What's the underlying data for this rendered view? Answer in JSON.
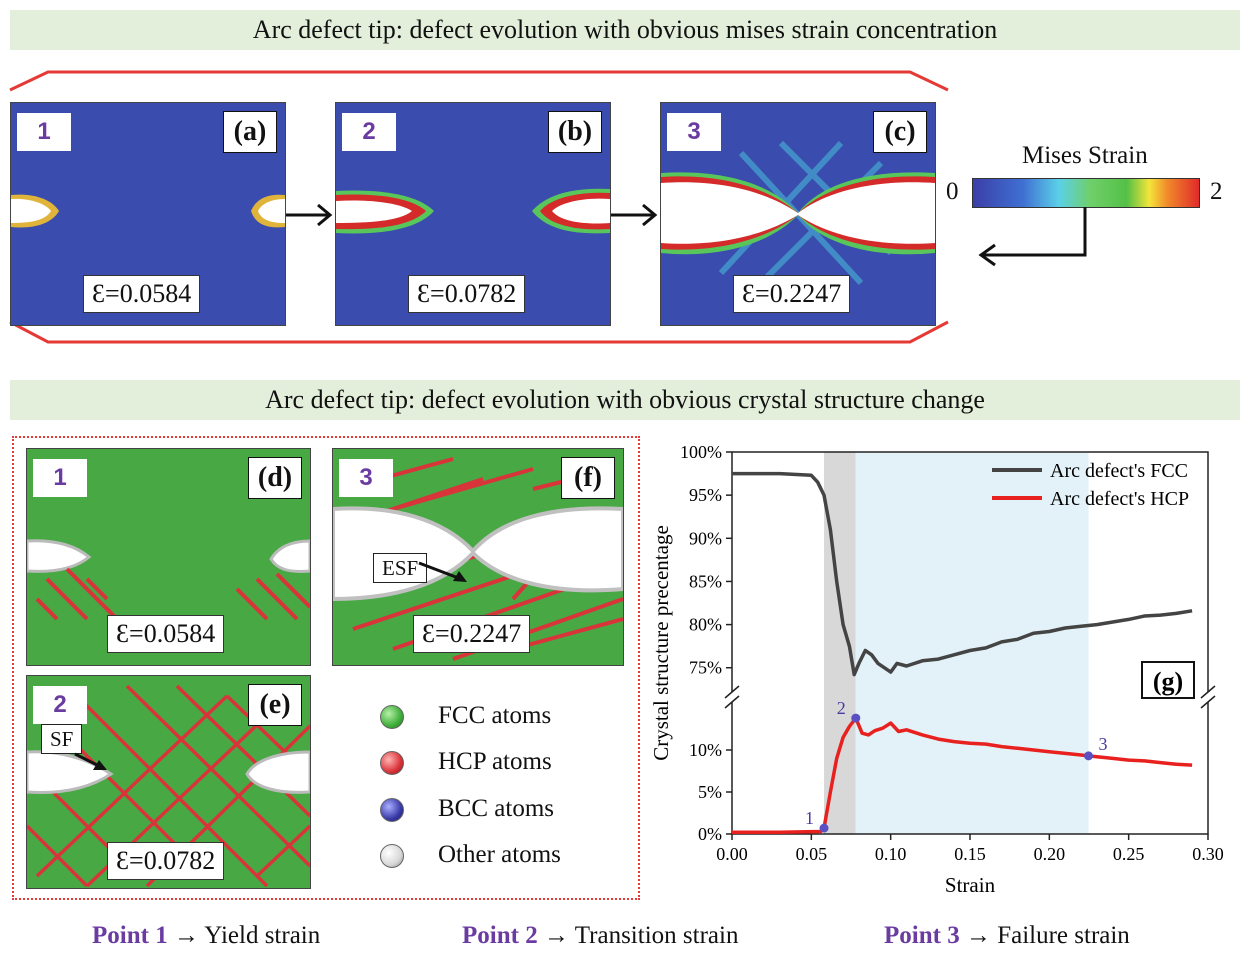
{
  "banner_top": "Arc defect tip: defect evolution with obvious mises strain concentration",
  "banner_mid": "Arc defect tip: defect evolution with obvious crystal structure change",
  "mises_panels": [
    {
      "num": "1",
      "letter": "(a)",
      "strain": "Ɛ=0.0584"
    },
    {
      "num": "2",
      "letter": "(b)",
      "strain": "Ɛ=0.0782"
    },
    {
      "num": "3",
      "letter": "(c)",
      "strain": "Ɛ=0.2247"
    }
  ],
  "colorbar": {
    "title": "Mises Strain",
    "min": "0",
    "max": "2"
  },
  "crystal_panels": [
    {
      "num": "1",
      "letter": "(d)",
      "strain": "Ɛ=0.0584"
    },
    {
      "num": "2",
      "letter": "(e)",
      "strain": "Ɛ=0.0782",
      "annotation": "SF"
    },
    {
      "num": "3",
      "letter": "(f)",
      "strain": "Ɛ=0.2247",
      "annotation": "ESF"
    }
  ],
  "atom_legend": [
    {
      "label": "FCC atoms",
      "color": "#3fae3a"
    },
    {
      "label": "HCP atoms",
      "color": "#d9343a"
    },
    {
      "label": "BCC atoms",
      "color": "#3a3aa8"
    },
    {
      "label": "Other atoms",
      "color": "#d8d8d8"
    }
  ],
  "footer": [
    {
      "point": "Point 1",
      "desc": "Yield strain"
    },
    {
      "point": "Point 2",
      "desc": "Transition strain"
    },
    {
      "point": "Point 3",
      "desc": "Failure strain"
    }
  ],
  "chart_data": {
    "type": "line",
    "panel_label": "(g)",
    "xlabel": "Strain",
    "ylabel": "Crystal structure precentage",
    "xlim": [
      0.0,
      0.3
    ],
    "x_ticks": [
      "0.00",
      "0.05",
      "0.10",
      "0.15",
      "0.20",
      "0.25",
      "0.30"
    ],
    "y_ticks_upper": [
      "75%",
      "80%",
      "85%",
      "90%",
      "95%",
      "100%"
    ],
    "y_ticks_lower": [
      "0%",
      "5%",
      "10%"
    ],
    "y_axis_break": [
      15,
      73
    ],
    "shaded_regions": [
      {
        "from": 0.058,
        "to": 0.078,
        "color": "#d8d8d8"
      },
      {
        "from": 0.078,
        "to": 0.2247,
        "color": "#e3f2f8"
      }
    ],
    "series": [
      {
        "name": "Arc defect's FCC",
        "color": "#444444",
        "x": [
          0.0,
          0.03,
          0.05,
          0.054,
          0.058,
          0.062,
          0.066,
          0.07,
          0.074,
          0.077,
          0.08,
          0.084,
          0.088,
          0.092,
          0.096,
          0.1,
          0.104,
          0.11,
          0.12,
          0.13,
          0.14,
          0.15,
          0.16,
          0.17,
          0.18,
          0.19,
          0.2,
          0.21,
          0.22,
          0.23,
          0.24,
          0.25,
          0.26,
          0.27,
          0.28,
          0.29
        ],
        "values": [
          97.5,
          97.5,
          97.3,
          96.5,
          95.0,
          91.0,
          85.0,
          80.0,
          77.5,
          74.2,
          75.5,
          77.0,
          76.5,
          75.5,
          75.0,
          74.5,
          75.5,
          75.2,
          75.8,
          76.0,
          76.5,
          77.0,
          77.3,
          78.0,
          78.3,
          79.0,
          79.2,
          79.6,
          79.8,
          80.0,
          80.3,
          80.6,
          81.0,
          81.1,
          81.3,
          81.6
        ]
      },
      {
        "name": "Arc defect's HCP",
        "color": "#e8211f",
        "x": [
          0.0,
          0.03,
          0.056,
          0.058,
          0.062,
          0.066,
          0.07,
          0.074,
          0.078,
          0.082,
          0.086,
          0.09,
          0.095,
          0.1,
          0.105,
          0.11,
          0.12,
          0.13,
          0.14,
          0.15,
          0.16,
          0.17,
          0.18,
          0.19,
          0.2,
          0.21,
          0.22,
          0.2247,
          0.23,
          0.24,
          0.25,
          0.26,
          0.27,
          0.28,
          0.29
        ],
        "values": [
          0.2,
          0.2,
          0.3,
          0.7,
          5.0,
          9.0,
          11.5,
          12.8,
          13.8,
          12.0,
          11.8,
          12.3,
          12.6,
          13.2,
          12.2,
          12.4,
          11.8,
          11.3,
          11.0,
          10.8,
          10.7,
          10.4,
          10.2,
          10.0,
          9.8,
          9.6,
          9.4,
          9.3,
          9.2,
          9.0,
          8.8,
          8.7,
          8.5,
          8.3,
          8.2
        ]
      }
    ],
    "markers": [
      {
        "label": "1",
        "x": 0.058,
        "y": 0.7
      },
      {
        "label": "2",
        "x": 0.078,
        "y": 13.8
      },
      {
        "label": "3",
        "x": 0.2247,
        "y": 9.3
      }
    ]
  }
}
